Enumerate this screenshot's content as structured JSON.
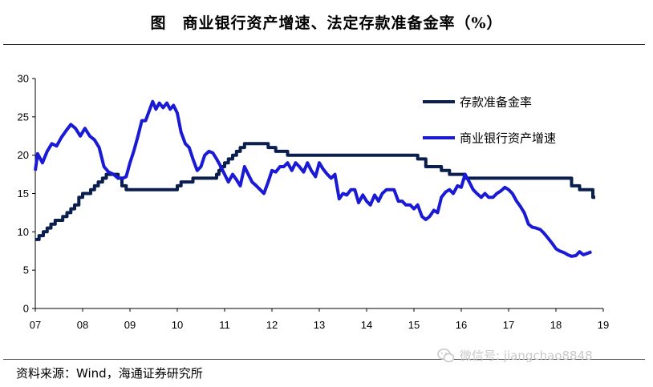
{
  "chart_data": {
    "type": "line",
    "title": "图　商业银行资产增速、法定存款准备金率（%）",
    "source": "资料来源：Wind，海通证券研究所",
    "xlabel": "",
    "ylabel": "",
    "x_tick_labels": [
      "07",
      "08",
      "09",
      "10",
      "11",
      "12",
      "13",
      "14",
      "15",
      "16",
      "17",
      "18",
      "19"
    ],
    "x_range": [
      2007.0,
      2019.0
    ],
    "ylim": [
      0,
      30
    ],
    "y_ticks": [
      0,
      5,
      10,
      15,
      20,
      25,
      30
    ],
    "grid": false,
    "legend_position": "top-right",
    "series": [
      {
        "name": "存款准备金率",
        "color": "#0b1f4e",
        "step": true,
        "points": [
          [
            2007.0,
            9.0
          ],
          [
            2007.08,
            9.5
          ],
          [
            2007.17,
            10.0
          ],
          [
            2007.25,
            10.5
          ],
          [
            2007.33,
            11.0
          ],
          [
            2007.42,
            11.5
          ],
          [
            2007.58,
            12.0
          ],
          [
            2007.67,
            12.5
          ],
          [
            2007.75,
            13.0
          ],
          [
            2007.83,
            13.5
          ],
          [
            2007.92,
            14.5
          ],
          [
            2008.0,
            15.0
          ],
          [
            2008.17,
            15.5
          ],
          [
            2008.25,
            16.0
          ],
          [
            2008.33,
            16.5
          ],
          [
            2008.42,
            17.0
          ],
          [
            2008.5,
            17.5
          ],
          [
            2008.75,
            17.0
          ],
          [
            2008.83,
            16.0
          ],
          [
            2008.92,
            15.5
          ],
          [
            2010.0,
            16.0
          ],
          [
            2010.08,
            16.5
          ],
          [
            2010.33,
            17.0
          ],
          [
            2010.83,
            17.5
          ],
          [
            2010.88,
            18.0
          ],
          [
            2010.92,
            18.5
          ],
          [
            2011.0,
            19.0
          ],
          [
            2011.08,
            19.5
          ],
          [
            2011.17,
            20.0
          ],
          [
            2011.25,
            20.5
          ],
          [
            2011.33,
            21.0
          ],
          [
            2011.42,
            21.5
          ],
          [
            2011.92,
            21.0
          ],
          [
            2012.08,
            20.5
          ],
          [
            2012.33,
            20.0
          ],
          [
            2015.08,
            19.5
          ],
          [
            2015.25,
            18.5
          ],
          [
            2015.58,
            18.0
          ],
          [
            2015.75,
            17.5
          ],
          [
            2016.08,
            17.0
          ],
          [
            2018.33,
            16.0
          ],
          [
            2018.5,
            15.5
          ],
          [
            2018.75,
            15.5
          ],
          [
            2018.78,
            14.5
          ],
          [
            2018.83,
            14.5
          ]
        ]
      },
      {
        "name": "商业银行资产增速",
        "color": "#1a1ad6",
        "step": false,
        "points": [
          [
            2007.0,
            18.0
          ],
          [
            2007.05,
            20.2
          ],
          [
            2007.15,
            19.0
          ],
          [
            2007.25,
            20.5
          ],
          [
            2007.35,
            21.5
          ],
          [
            2007.45,
            21.2
          ],
          [
            2007.55,
            22.3
          ],
          [
            2007.65,
            23.2
          ],
          [
            2007.75,
            24.0
          ],
          [
            2007.85,
            23.5
          ],
          [
            2007.95,
            22.5
          ],
          [
            2008.05,
            23.5
          ],
          [
            2008.15,
            22.5
          ],
          [
            2008.25,
            22.0
          ],
          [
            2008.35,
            21.0
          ],
          [
            2008.45,
            18.5
          ],
          [
            2008.55,
            17.8
          ],
          [
            2008.65,
            17.5
          ],
          [
            2008.75,
            17.0
          ],
          [
            2008.85,
            17.0
          ],
          [
            2008.92,
            17.2
          ],
          [
            2009.0,
            19.0
          ],
          [
            2009.08,
            20.5
          ],
          [
            2009.17,
            22.5
          ],
          [
            2009.25,
            24.5
          ],
          [
            2009.33,
            24.5
          ],
          [
            2009.42,
            26.0
          ],
          [
            2009.48,
            27.0
          ],
          [
            2009.55,
            26.0
          ],
          [
            2009.62,
            26.8
          ],
          [
            2009.7,
            26.2
          ],
          [
            2009.78,
            26.8
          ],
          [
            2009.85,
            26.0
          ],
          [
            2009.92,
            26.5
          ],
          [
            2010.0,
            25.5
          ],
          [
            2010.08,
            23.0
          ],
          [
            2010.17,
            21.5
          ],
          [
            2010.25,
            21.0
          ],
          [
            2010.33,
            19.5
          ],
          [
            2010.42,
            18.0
          ],
          [
            2010.5,
            18.5
          ],
          [
            2010.58,
            20.0
          ],
          [
            2010.67,
            20.5
          ],
          [
            2010.75,
            20.3
          ],
          [
            2010.83,
            19.5
          ],
          [
            2010.92,
            18.5
          ],
          [
            2011.0,
            17.5
          ],
          [
            2011.08,
            16.5
          ],
          [
            2011.17,
            17.5
          ],
          [
            2011.25,
            16.8
          ],
          [
            2011.33,
            16.0
          ],
          [
            2011.42,
            18.5
          ],
          [
            2011.5,
            17.5
          ],
          [
            2011.58,
            16.5
          ],
          [
            2011.67,
            16.0
          ],
          [
            2011.75,
            15.5
          ],
          [
            2011.83,
            15.0
          ],
          [
            2011.92,
            16.5
          ],
          [
            2012.0,
            18.0
          ],
          [
            2012.08,
            17.8
          ],
          [
            2012.17,
            18.5
          ],
          [
            2012.25,
            18.5
          ],
          [
            2012.33,
            19.0
          ],
          [
            2012.42,
            18.0
          ],
          [
            2012.5,
            19.0
          ],
          [
            2012.58,
            18.5
          ],
          [
            2012.67,
            17.8
          ],
          [
            2012.75,
            19.0
          ],
          [
            2012.83,
            18.0
          ],
          [
            2012.92,
            17.2
          ],
          [
            2013.0,
            19.0
          ],
          [
            2013.08,
            18.2
          ],
          [
            2013.17,
            17.5
          ],
          [
            2013.25,
            17.0
          ],
          [
            2013.33,
            17.5
          ],
          [
            2013.42,
            14.3
          ],
          [
            2013.5,
            15.0
          ],
          [
            2013.58,
            14.8
          ],
          [
            2013.67,
            15.5
          ],
          [
            2013.75,
            15.5
          ],
          [
            2013.83,
            13.8
          ],
          [
            2013.92,
            14.8
          ],
          [
            2014.0,
            14.0
          ],
          [
            2014.08,
            13.5
          ],
          [
            2014.17,
            14.8
          ],
          [
            2014.25,
            14.0
          ],
          [
            2014.33,
            15.0
          ],
          [
            2014.42,
            15.5
          ],
          [
            2014.5,
            15.5
          ],
          [
            2014.58,
            15.5
          ],
          [
            2014.67,
            14.0
          ],
          [
            2014.75,
            14.0
          ],
          [
            2014.83,
            13.5
          ],
          [
            2014.92,
            13.5
          ],
          [
            2015.0,
            13.0
          ],
          [
            2015.08,
            13.5
          ],
          [
            2015.17,
            12.0
          ],
          [
            2015.25,
            11.6
          ],
          [
            2015.33,
            12.0
          ],
          [
            2015.42,
            12.8
          ],
          [
            2015.5,
            12.5
          ],
          [
            2015.58,
            14.5
          ],
          [
            2015.67,
            15.2
          ],
          [
            2015.75,
            15.5
          ],
          [
            2015.83,
            15.0
          ],
          [
            2015.92,
            16.0
          ],
          [
            2016.0,
            15.8
          ],
          [
            2016.08,
            17.5
          ],
          [
            2016.17,
            16.5
          ],
          [
            2016.25,
            15.5
          ],
          [
            2016.33,
            15.0
          ],
          [
            2016.42,
            14.5
          ],
          [
            2016.5,
            15.0
          ],
          [
            2016.58,
            14.5
          ],
          [
            2016.67,
            14.5
          ],
          [
            2016.75,
            15.0
          ],
          [
            2016.83,
            15.3
          ],
          [
            2016.92,
            15.8
          ],
          [
            2017.0,
            15.5
          ],
          [
            2017.08,
            15.0
          ],
          [
            2017.17,
            14.0
          ],
          [
            2017.25,
            13.3
          ],
          [
            2017.33,
            12.5
          ],
          [
            2017.42,
            11.0
          ],
          [
            2017.5,
            10.6
          ],
          [
            2017.58,
            10.5
          ],
          [
            2017.67,
            10.3
          ],
          [
            2017.75,
            9.8
          ],
          [
            2017.83,
            9.2
          ],
          [
            2017.92,
            8.5
          ],
          [
            2018.0,
            7.8
          ],
          [
            2018.08,
            7.5
          ],
          [
            2018.17,
            7.3
          ],
          [
            2018.25,
            7.0
          ],
          [
            2018.33,
            6.8
          ],
          [
            2018.42,
            6.9
          ],
          [
            2018.5,
            7.4
          ],
          [
            2018.58,
            7.0
          ],
          [
            2018.67,
            7.2
          ],
          [
            2018.75,
            7.4
          ]
        ]
      }
    ]
  },
  "watermark": {
    "text": "微信号: jiangchao8848",
    "icon": "wechat-icon"
  }
}
